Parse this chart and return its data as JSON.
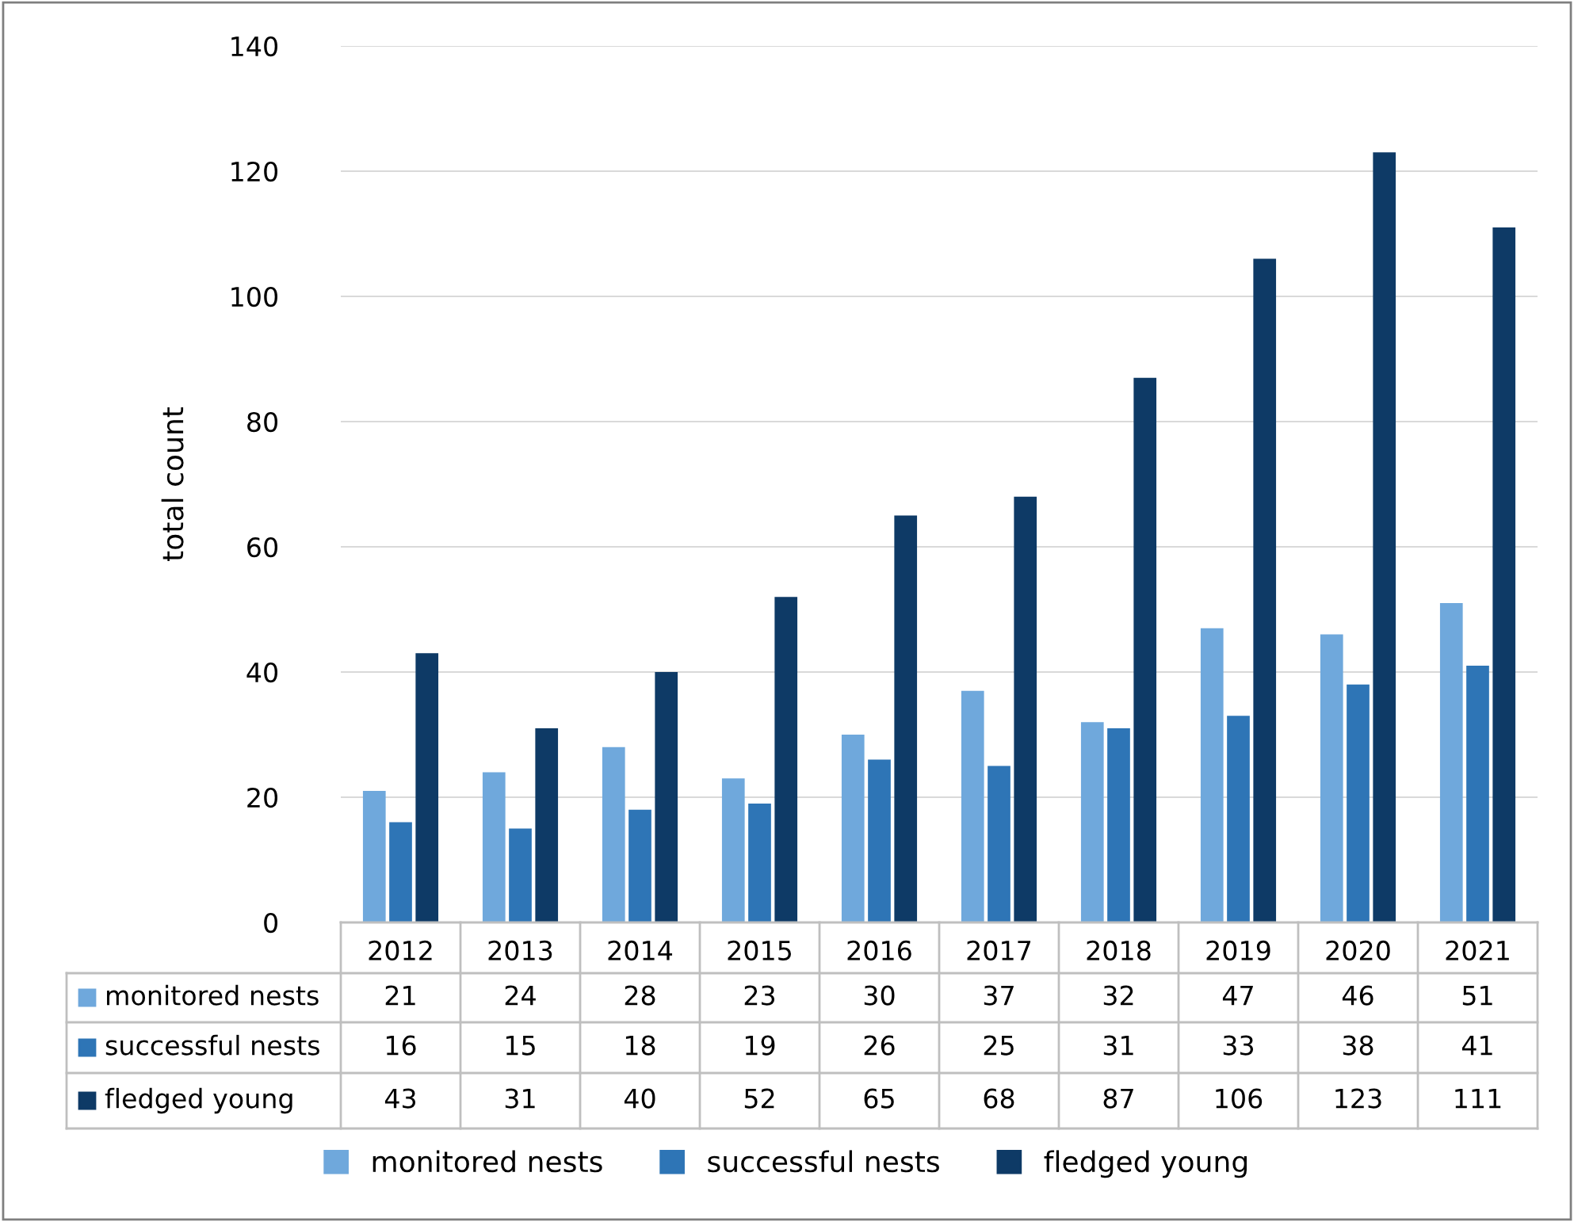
{
  "chart_data": {
    "type": "bar",
    "ylabel": "total count",
    "categories": [
      "2012",
      "2013",
      "2014",
      "2015",
      "2016",
      "2017",
      "2018",
      "2019",
      "2020",
      "2021"
    ],
    "series": [
      {
        "name": "monitored nests",
        "color": "#6fa8dc",
        "values": [
          21,
          24,
          28,
          23,
          30,
          37,
          32,
          47,
          46,
          51
        ]
      },
      {
        "name": "successful nests",
        "color": "#2e75b6",
        "values": [
          16,
          15,
          18,
          19,
          26,
          25,
          31,
          33,
          38,
          41
        ]
      },
      {
        "name": "fledged young",
        "color": "#0e3a66",
        "values": [
          43,
          31,
          40,
          52,
          65,
          68,
          87,
          106,
          123,
          111
        ]
      }
    ],
    "ylim": [
      0,
      140
    ],
    "yticks": [
      0,
      20,
      40,
      60,
      80,
      100,
      120,
      140
    ],
    "grid": "y",
    "legend": "bottom",
    "data_labels": true
  }
}
